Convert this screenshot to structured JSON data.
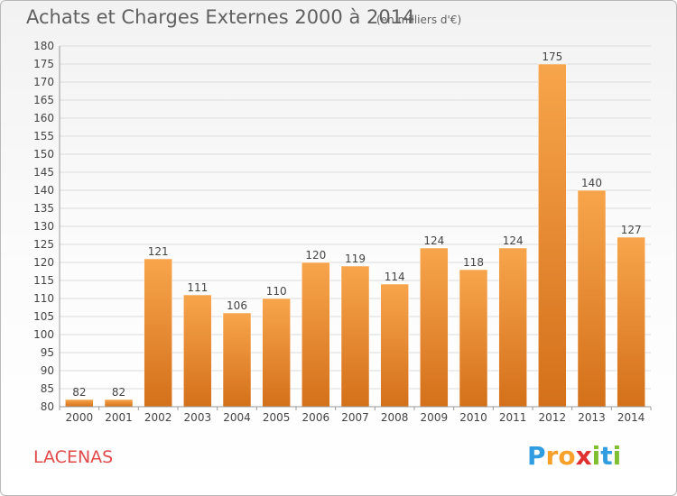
{
  "title": "Achats et Charges Externes 2000 à 2014",
  "subtitle": "(en milliers d'€)",
  "commune": "LACENAS",
  "brand": {
    "letters": [
      "P",
      "r",
      "o",
      "x",
      "i",
      "t",
      "i"
    ],
    "colors": [
      "#2f9de0",
      "#f7a02a",
      "#f7a02a",
      "#e03030",
      "#80c030",
      "#2f9de0",
      "#80c030"
    ]
  },
  "chart_data": {
    "type": "bar",
    "categories": [
      "2000",
      "2001",
      "2002",
      "2003",
      "2004",
      "2005",
      "2006",
      "2007",
      "2008",
      "2009",
      "2010",
      "2011",
      "2012",
      "2013",
      "2014"
    ],
    "values": [
      82,
      82,
      121,
      111,
      106,
      110,
      120,
      119,
      114,
      124,
      118,
      124,
      175,
      140,
      127
    ],
    "ylim": [
      80,
      180
    ],
    "yticks": [
      80,
      85,
      90,
      95,
      100,
      105,
      110,
      115,
      120,
      125,
      130,
      135,
      140,
      145,
      150,
      155,
      160,
      165,
      170,
      175,
      180
    ],
    "grid": true,
    "bar_color": "#f39a3c",
    "bar_color_dark": "#d4701a"
  }
}
